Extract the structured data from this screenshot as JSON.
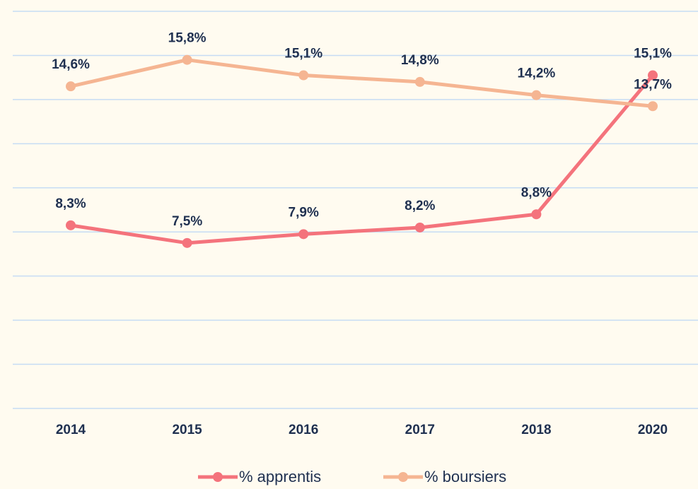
{
  "chart_data": {
    "type": "line",
    "categories": [
      "2014",
      "2015",
      "2016",
      "2017",
      "2018",
      "2020"
    ],
    "series": [
      {
        "name": "% apprentis",
        "color": "#f4737c",
        "values": [
          8.3,
          7.5,
          7.9,
          8.2,
          8.8,
          15.1
        ],
        "value_labels": [
          "8,3%",
          "7,5%",
          "7,9%",
          "8,2%",
          "8,8%",
          "15,1%"
        ]
      },
      {
        "name": "% boursiers",
        "color": "#f5b592",
        "values": [
          14.6,
          15.8,
          15.1,
          14.8,
          14.2,
          13.7
        ],
        "value_labels": [
          "14,6%",
          "15,8%",
          "15,1%",
          "14,8%",
          "14,2%",
          "13,7%"
        ]
      }
    ],
    "ylim": [
      0,
      18
    ],
    "yticks": [
      0,
      2,
      4,
      6,
      8,
      10,
      12,
      14,
      16,
      18
    ],
    "grid": true,
    "legend": "bottom"
  }
}
